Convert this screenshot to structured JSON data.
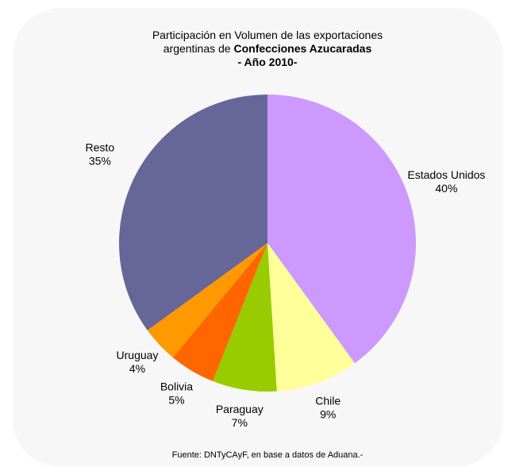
{
  "chart_data": {
    "type": "pie",
    "title": {
      "line1": "Participación en Volumen de las exportaciones",
      "line2": "argentinas de",
      "line2_bold": "Confecciones Azucaradas",
      "line3": "- Año 2010-"
    },
    "categories": [
      "Estados Unidos",
      "Chile",
      "Paraguay",
      "Bolivia",
      "Uruguay",
      "Resto"
    ],
    "values": [
      40,
      9,
      7,
      5,
      4,
      35
    ],
    "value_labels": [
      "40%",
      "9%",
      "7%",
      "5%",
      "4%",
      "35%"
    ],
    "colors": [
      "#cc99ff",
      "#ffff99",
      "#99cc00",
      "#ff6600",
      "#ff9900",
      "#666699"
    ],
    "source": "Fuente: DNTyCAyF, en base a datos de Aduana.-"
  }
}
